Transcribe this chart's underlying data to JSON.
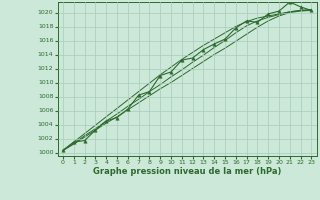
{
  "x": [
    0,
    1,
    2,
    3,
    4,
    5,
    6,
    7,
    8,
    9,
    10,
    11,
    12,
    13,
    14,
    15,
    16,
    17,
    18,
    19,
    20,
    21,
    22,
    23
  ],
  "y_main": [
    1000.3,
    1001.5,
    1001.7,
    1003.2,
    1004.5,
    1005.0,
    1006.2,
    1008.2,
    1008.7,
    1011.0,
    1011.5,
    1013.2,
    1013.5,
    1014.7,
    1015.5,
    1016.2,
    1017.8,
    1018.8,
    1018.6,
    1019.8,
    1020.2,
    1021.5,
    1020.8,
    1020.3
  ],
  "y_trend1": [
    1000.3,
    1001.2,
    1002.2,
    1003.2,
    1004.2,
    1005.1,
    1006.1,
    1007.1,
    1008.1,
    1009.1,
    1010.0,
    1011.0,
    1012.0,
    1013.0,
    1014.0,
    1014.9,
    1015.9,
    1016.9,
    1017.9,
    1018.8,
    1019.5,
    1020.0,
    1020.2,
    1020.3
  ],
  "y_trend2": [
    1000.3,
    1001.3,
    1002.4,
    1003.4,
    1004.5,
    1005.5,
    1006.6,
    1007.6,
    1008.7,
    1009.7,
    1010.8,
    1011.8,
    1012.9,
    1013.9,
    1015.0,
    1016.0,
    1017.1,
    1018.1,
    1018.8,
    1019.3,
    1019.7,
    1020.1,
    1020.3,
    1020.4
  ],
  "y_trend3": [
    1000.3,
    1001.5,
    1002.7,
    1003.9,
    1005.1,
    1006.3,
    1007.5,
    1008.7,
    1009.9,
    1011.1,
    1012.2,
    1013.3,
    1014.3,
    1015.3,
    1016.2,
    1017.1,
    1018.0,
    1018.7,
    1019.2,
    1019.5,
    1019.8,
    1020.1,
    1020.3,
    1020.4
  ],
  "line_color": "#2d6a2d",
  "bg_color": "#cce8d8",
  "grid_color": "#aaccbb",
  "xlabel": "Graphe pression niveau de la mer (hPa)",
  "ylim": [
    999.5,
    1021.5
  ],
  "ytick_vals": [
    1000,
    1002,
    1004,
    1006,
    1008,
    1010,
    1012,
    1014,
    1016,
    1018,
    1020
  ],
  "xtick_vals": [
    0,
    1,
    2,
    3,
    4,
    5,
    6,
    7,
    8,
    9,
    10,
    11,
    12,
    13,
    14,
    15,
    16,
    17,
    18,
    19,
    20,
    21,
    22,
    23
  ]
}
